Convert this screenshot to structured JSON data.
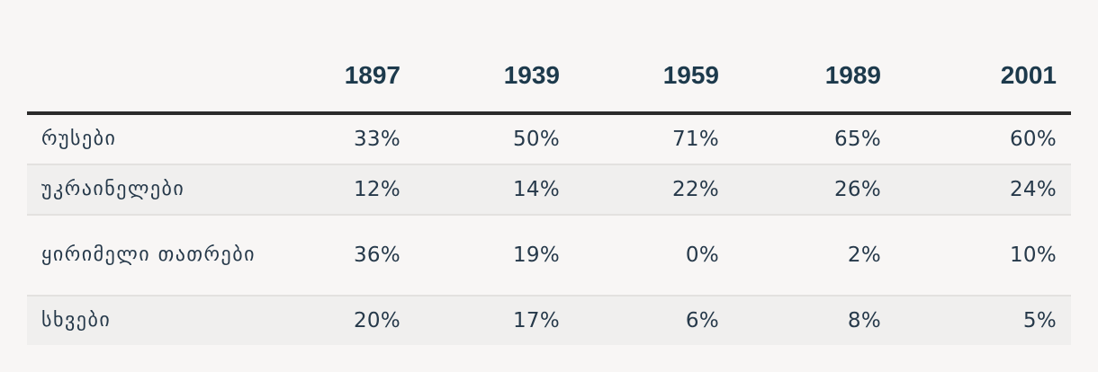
{
  "table": {
    "columns": [
      "",
      "1897",
      "1939",
      "1959",
      "1989",
      "2001"
    ],
    "rows": [
      {
        "label": "რუსები",
        "values": [
          "33%",
          "50%",
          "71%",
          "65%",
          "60%"
        ]
      },
      {
        "label": "უკრაინელები",
        "values": [
          "12%",
          "14%",
          "22%",
          "26%",
          "24%"
        ]
      },
      {
        "label": "ყირიმელი თათრები",
        "values": [
          "36%",
          "19%",
          "0%",
          "2%",
          "10%"
        ]
      },
      {
        "label": "სხვები",
        "values": [
          "20%",
          "17%",
          "6%",
          "8%",
          "5%"
        ]
      }
    ]
  },
  "colors": {
    "header_text": "#1d3a4c",
    "body_text": "#26394a",
    "rule": "#2b2b2b",
    "stripe": "#f0efee",
    "background": "#f8f6f5"
  }
}
